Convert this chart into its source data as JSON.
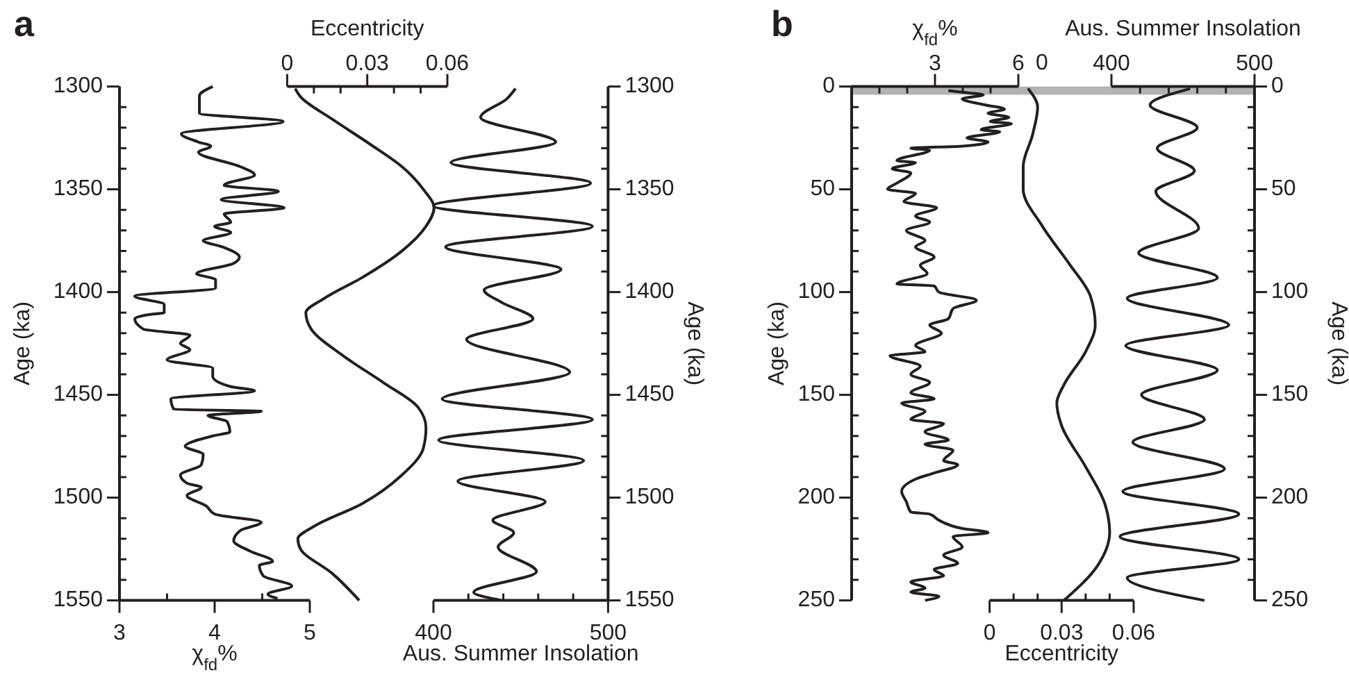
{
  "chart_data": [
    {
      "type": "line",
      "title": "a",
      "xlabel": "χ$_{fd}$%",
      "ylabel": "Age (ka)",
      "xlim": [
        3,
        5
      ],
      "xticks": [
        3,
        {
          "value": 3.5,
          "label": null
        },
        4,
        {
          "value": 4.5,
          "label": null
        },
        5
      ],
      "ylim": [
        1550,
        1300
      ],
      "yticks": [
        1300,
        {
          "value": 1310,
          "label": null
        },
        {
          "value": 1320,
          "label": null
        },
        {
          "value": 1330,
          "label": null
        },
        {
          "value": 1340,
          "label": null
        },
        1350,
        {
          "value": 1360,
          "label": null
        },
        {
          "value": 1370,
          "label": null
        },
        {
          "value": 1380,
          "label": null
        },
        {
          "value": 1390,
          "label": null
        },
        1400,
        {
          "value": 1410,
          "label": null
        },
        {
          "value": 1420,
          "label": null
        },
        {
          "value": 1430,
          "label": null
        },
        {
          "value": 1440,
          "label": null
        },
        1450,
        {
          "value": 1460,
          "label": null
        },
        {
          "value": 1470,
          "label": null
        },
        {
          "value": 1480,
          "label": null
        },
        {
          "value": 1490,
          "label": null
        },
        1500,
        {
          "value": 1510,
          "label": null
        },
        {
          "value": 1520,
          "label": null
        },
        {
          "value": 1530,
          "label": null
        },
        {
          "value": 1540,
          "label": null
        },
        1550
      ],
      "series": [
        {
          "color": "#231f20",
          "x": [
            3.98,
            3.84,
            3.84,
            4.72,
            3.65,
            3.83,
            3.96,
            3.83,
            4.27,
            4.42,
            4.1,
            4.67,
            4.07,
            4.73,
            4.1,
            4.17,
            4.0,
            4.17,
            3.88,
            4.08,
            4.26,
            4.2,
            3.81,
            4.01,
            4.01,
            3.16,
            3.47,
            3.47,
            3.3,
            3.16,
            3.25,
            3.74,
            3.64,
            3.74,
            3.5,
            3.98,
            3.98,
            4.17,
            4.42,
            3.54,
            3.57,
            4.49,
            3.93,
            4.13,
            4.16,
            3.98,
            3.69,
            3.88,
            3.86,
            3.64,
            3.71,
            3.86,
            3.71,
            3.91,
            4.0,
            4.49,
            4.27,
            4.2,
            4.37,
            4.61,
            4.47,
            4.51,
            4.81,
            4.56,
            4.66
          ],
          "values": [
            1300,
            1304.5,
            1313,
            1317,
            1323,
            1327,
            1329,
            1332,
            1339,
            1343,
            1348,
            1351,
            1355,
            1359,
            1362,
            1366,
            1368,
            1371,
            1375,
            1378,
            1383,
            1386,
            1391,
            1394,
            1398,
            1402,
            1406,
            1410,
            1411,
            1413,
            1418,
            1421,
            1425,
            1428,
            1433,
            1437,
            1441,
            1446,
            1448,
            1452,
            1457,
            1458,
            1460,
            1463,
            1468,
            1470,
            1475,
            1479,
            1484,
            1489,
            1493,
            1495,
            1499,
            1504,
            1508,
            1512,
            1516,
            1521,
            1526,
            1531,
            1533,
            1538,
            1543,
            1547,
            1549
          ]
        }
      ]
    },
    {
      "type": "line",
      "xlabel": "Eccentricity",
      "xlim": [
        0,
        0.06
      ],
      "xticks": [
        0,
        {
          "value": 0.01,
          "label": null
        },
        {
          "value": 0.02,
          "label": null
        },
        0.03,
        {
          "value": 0.04,
          "label": null
        },
        {
          "value": 0.05,
          "label": null
        },
        0.06
      ],
      "ylim": [
        1550,
        1300
      ],
      "tick_labels": "x",
      "series": [
        {
          "color": "#231f20",
          "x": [
            0.003,
            0.005,
            0.017,
            0.031,
            0.043,
            0.051,
            0.055,
            0.052,
            0.043,
            0.028,
            0.014,
            0.007,
            0.009,
            0.021,
            0.036,
            0.049,
            0.052,
            0.051,
            0.043,
            0.028,
            0.01,
            0.004,
            0.005,
            0.017,
            0.027
          ],
          "values": [
            1301,
            1305,
            1316,
            1328,
            1339,
            1350,
            1359,
            1368,
            1380,
            1393,
            1403,
            1410,
            1418,
            1431,
            1444,
            1456,
            1466,
            1476,
            1489,
            1503,
            1514,
            1520,
            1525,
            1537,
            1550
          ]
        }
      ]
    },
    {
      "type": "line",
      "xlabel": "Aus. Summer Insolation",
      "ylabel": "Age (ka)",
      "xlim": [
        400,
        500
      ],
      "xticks": [
        400,
        {
          "value": 420,
          "label": null
        },
        {
          "value": 440,
          "label": null
        },
        {
          "value": 460,
          "label": null
        },
        {
          "value": 480,
          "label": null
        },
        500
      ],
      "ylim": [
        1550,
        1300
      ],
      "yticks": [
        1300,
        {
          "value": 1310,
          "label": null
        },
        {
          "value": 1320,
          "label": null
        },
        {
          "value": 1330,
          "label": null
        },
        {
          "value": 1340,
          "label": null
        },
        1350,
        {
          "value": 1360,
          "label": null
        },
        {
          "value": 1370,
          "label": null
        },
        {
          "value": 1380,
          "label": null
        },
        {
          "value": 1390,
          "label": null
        },
        1400,
        {
          "value": 1410,
          "label": null
        },
        {
          "value": 1420,
          "label": null
        },
        {
          "value": 1430,
          "label": null
        },
        {
          "value": 1440,
          "label": null
        },
        1450,
        {
          "value": 1460,
          "label": null
        },
        {
          "value": 1470,
          "label": null
        },
        {
          "value": 1480,
          "label": null
        },
        {
          "value": 1490,
          "label": null
        },
        1500,
        {
          "value": 1510,
          "label": null
        },
        {
          "value": 1520,
          "label": null
        },
        {
          "value": 1530,
          "label": null
        },
        {
          "value": 1540,
          "label": null
        },
        1550
      ],
      "series": [
        {
          "color": "#231f20",
          "x": [
            447,
            442,
            427,
            470,
            410,
            490,
            400,
            491,
            407,
            473,
            429,
            439,
            457,
            419,
            478,
            405,
            491,
            403,
            486,
            414,
            464,
            434,
            446,
            437,
            459,
            423,
            439
          ],
          "values": [
            1301,
            1306,
            1315,
            1327,
            1337,
            1347,
            1358,
            1368,
            1378,
            1389,
            1399,
            1405,
            1413,
            1423,
            1439,
            1452,
            1462,
            1472,
            1482,
            1492,
            1502,
            1511,
            1517,
            1524,
            1536,
            1546,
            1550
          ]
        }
      ]
    },
    {
      "type": "line",
      "title": "b",
      "xlabel": "χ$_{fd}$%",
      "ylabel": "Age (ka)",
      "xlim": [
        0,
        6
      ],
      "xticks": [
        {
          "value": 0,
          "label": null
        },
        {
          "value": 1,
          "label": null
        },
        {
          "value": 2,
          "label": null
        },
        3,
        {
          "value": 4,
          "label": null
        },
        {
          "value": 5,
          "label": null
        },
        6
      ],
      "ylim": [
        250,
        0
      ],
      "yticks": [
        0,
        {
          "value": 10,
          "label": null
        },
        {
          "value": 20,
          "label": null
        },
        {
          "value": 30,
          "label": null
        },
        {
          "value": 40,
          "label": null
        },
        50,
        {
          "value": 60,
          "label": null
        },
        {
          "value": 70,
          "label": null
        },
        {
          "value": 80,
          "label": null
        },
        {
          "value": 90,
          "label": null
        },
        100,
        {
          "value": 110,
          "label": null
        },
        {
          "value": 120,
          "label": null
        },
        {
          "value": 130,
          "label": null
        },
        {
          "value": 140,
          "label": null
        },
        150,
        {
          "value": 160,
          "label": null
        },
        {
          "value": 170,
          "label": null
        },
        {
          "value": 180,
          "label": null
        },
        {
          "value": 190,
          "label": null
        },
        200,
        {
          "value": 210,
          "label": null
        },
        {
          "value": 220,
          "label": null
        },
        {
          "value": 230,
          "label": null
        },
        {
          "value": 240,
          "label": null
        },
        250
      ],
      "bands": [
        {
          "axis": "y",
          "from": 0,
          "to": 4,
          "color": "#b3b3b3"
        }
      ],
      "annotations": [
        "0"
      ],
      "series": [
        {
          "color": "#231f20",
          "x": [
            3.48,
            4.15,
            4.74,
            3.98,
            4.82,
            5.5,
            4.91,
            5.66,
            4.99,
            5.75,
            4.66,
            5.33,
            4.15,
            4.91,
            3.98,
            2.13,
            2.81,
            1.63,
            2.3,
            1.46,
            2.13,
            1.63,
            1.29,
            2.3,
            1.88,
            3.06,
            2.3,
            2.81,
            1.97,
            2.64,
            2.3,
            2.97,
            2.47,
            2.72,
            1.63,
            2.97,
            3.14,
            4.49,
            3.65,
            3.48,
            2.81,
            3.23,
            2.3,
            2.64,
            1.38,
            2.47,
            2.13,
            2.81,
            2.13,
            2.97,
            1.8,
            2.64,
            2.13,
            3.31,
            2.64,
            3.48,
            2.64,
            3.65,
            3.31,
            3.82,
            2.97,
            2.3,
            1.8,
            1.97,
            2.13,
            2.81,
            3.14,
            3.98,
            4.91,
            3.65,
            3.98,
            3.31,
            3.82,
            2.97,
            3.31,
            2.13,
            2.64,
            2.13,
            3.14,
            2.64
          ],
          "values": [
            2,
            3,
            4,
            6,
            9,
            11,
            13,
            15,
            17,
            18,
            21,
            22,
            25,
            27,
            29,
            30,
            31,
            36,
            37,
            40,
            42,
            47,
            50,
            52,
            56,
            59,
            63,
            66,
            70,
            75,
            78,
            83,
            87,
            91,
            96,
            97,
            100,
            104,
            108,
            113,
            116,
            120,
            126,
            129,
            131,
            136,
            140,
            144,
            149,
            152,
            154,
            158,
            162,
            164,
            168,
            172,
            174,
            177,
            182,
            184,
            188,
            191,
            197,
            202,
            207,
            208,
            211,
            215,
            217,
            219,
            224,
            228,
            232,
            235,
            238,
            241,
            244,
            246,
            248,
            250
          ]
        }
      ]
    },
    {
      "type": "line",
      "xlabel": "Eccentricity",
      "xlim": [
        0,
        0.06
      ],
      "xticks": [
        0,
        {
          "value": 0.01,
          "label": null
        },
        {
          "value": 0.02,
          "label": null
        },
        0.03,
        {
          "value": 0.04,
          "label": null
        },
        {
          "value": 0.05,
          "label": null
        },
        0.06
      ],
      "ylim": [
        250,
        0
      ],
      "tick_labels": "x",
      "series": [
        {
          "color": "#231f20",
          "x": [
            0.016,
            0.02,
            0.018,
            0.014,
            0.014,
            0.022,
            0.033,
            0.042,
            0.044,
            0.04,
            0.031,
            0.028,
            0.03,
            0.04,
            0.048,
            0.05,
            0.045,
            0.031
          ],
          "values": [
            1,
            10,
            23,
            39,
            50,
            68,
            86,
            102,
            116,
            129,
            145,
            154,
            165,
            185,
            203,
            217,
            233,
            250
          ]
        }
      ]
    },
    {
      "type": "line",
      "xlabel": "Aus. Summer Insolation",
      "ylabel": "Age (ka)",
      "xlim": [
        400,
        500
      ],
      "xticks": [
        400,
        {
          "value": 420,
          "label": null
        },
        {
          "value": 440,
          "label": null
        },
        {
          "value": 460,
          "label": null
        },
        {
          "value": 480,
          "label": null
        },
        500
      ],
      "ylim": [
        250,
        0
      ],
      "yticks": [
        0,
        {
          "value": 10,
          "label": null
        },
        {
          "value": 20,
          "label": null
        },
        {
          "value": 30,
          "label": null
        },
        {
          "value": 40,
          "label": null
        },
        50,
        {
          "value": 60,
          "label": null
        },
        {
          "value": 70,
          "label": null
        },
        {
          "value": 80,
          "label": null
        },
        {
          "value": 90,
          "label": null
        },
        100,
        {
          "value": 110,
          "label": null
        },
        {
          "value": 120,
          "label": null
        },
        {
          "value": 130,
          "label": null
        },
        {
          "value": 140,
          "label": null
        },
        150,
        {
          "value": 160,
          "label": null
        },
        {
          "value": 170,
          "label": null
        },
        {
          "value": 180,
          "label": null
        },
        {
          "value": 190,
          "label": null
        },
        200,
        {
          "value": 210,
          "label": null
        },
        {
          "value": 220,
          "label": null
        },
        {
          "value": 230,
          "label": null
        },
        {
          "value": 240,
          "label": null
        },
        250
      ],
      "series": [
        {
          "color": "#231f20",
          "x": [
            455,
            427,
            460,
            432,
            458,
            431,
            461,
            419,
            474,
            411,
            482,
            410,
            474,
            421,
            465,
            415,
            479,
            408,
            489,
            406,
            489,
            411,
            465
          ],
          "values": [
            1,
            9,
            20,
            30,
            41,
            51,
            69,
            81,
            93,
            103,
            116,
            126,
            138,
            150,
            162,
            173,
            186,
            197,
            208,
            219,
            230,
            239,
            250
          ]
        }
      ]
    }
  ]
}
